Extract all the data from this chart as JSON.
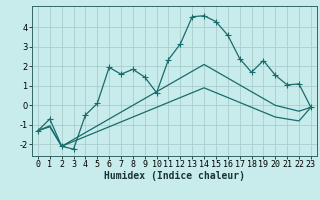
{
  "title": "",
  "xlabel": "Humidex (Indice chaleur)",
  "background_color": "#c8ecec",
  "grid_color": "#aacccc",
  "line_color": "#1a6b6b",
  "x_values": [
    0,
    1,
    2,
    3,
    4,
    5,
    6,
    7,
    8,
    9,
    10,
    11,
    12,
    13,
    14,
    15,
    16,
    17,
    18,
    19,
    20,
    21,
    22,
    23
  ],
  "line1_y": [
    -1.3,
    -0.7,
    -2.1,
    -2.25,
    -0.5,
    0.1,
    1.95,
    1.6,
    1.85,
    1.45,
    0.65,
    2.35,
    3.15,
    4.55,
    4.6,
    4.3,
    3.6,
    2.4,
    1.7,
    2.3,
    1.55,
    1.05,
    1.1,
    -0.1
  ],
  "line2_y": [
    -1.3,
    -1.05,
    -2.1,
    -1.75,
    -1.4,
    -1.05,
    -0.7,
    -0.35,
    0.0,
    0.35,
    0.7,
    1.05,
    1.4,
    1.75,
    2.1,
    1.75,
    1.4,
    1.05,
    0.7,
    0.35,
    0.0,
    -0.15,
    -0.3,
    -0.1
  ],
  "line3_y": [
    -1.3,
    -1.1,
    -2.1,
    -1.85,
    -1.6,
    -1.35,
    -1.1,
    -0.85,
    -0.6,
    -0.35,
    -0.1,
    0.15,
    0.4,
    0.65,
    0.9,
    0.65,
    0.4,
    0.15,
    -0.1,
    -0.35,
    -0.6,
    -0.7,
    -0.8,
    -0.1
  ],
  "xlim": [
    -0.5,
    23.5
  ],
  "ylim": [
    -2.6,
    5.1
  ],
  "yticks": [
    -2,
    -1,
    0,
    1,
    2,
    3,
    4
  ],
  "xticks": [
    0,
    1,
    2,
    3,
    4,
    5,
    6,
    7,
    8,
    9,
    10,
    11,
    12,
    13,
    14,
    15,
    16,
    17,
    18,
    19,
    20,
    21,
    22,
    23
  ],
  "markersize": 4,
  "linewidth": 0.9,
  "tick_fontsize": 6.0,
  "xlabel_fontsize": 7.0
}
